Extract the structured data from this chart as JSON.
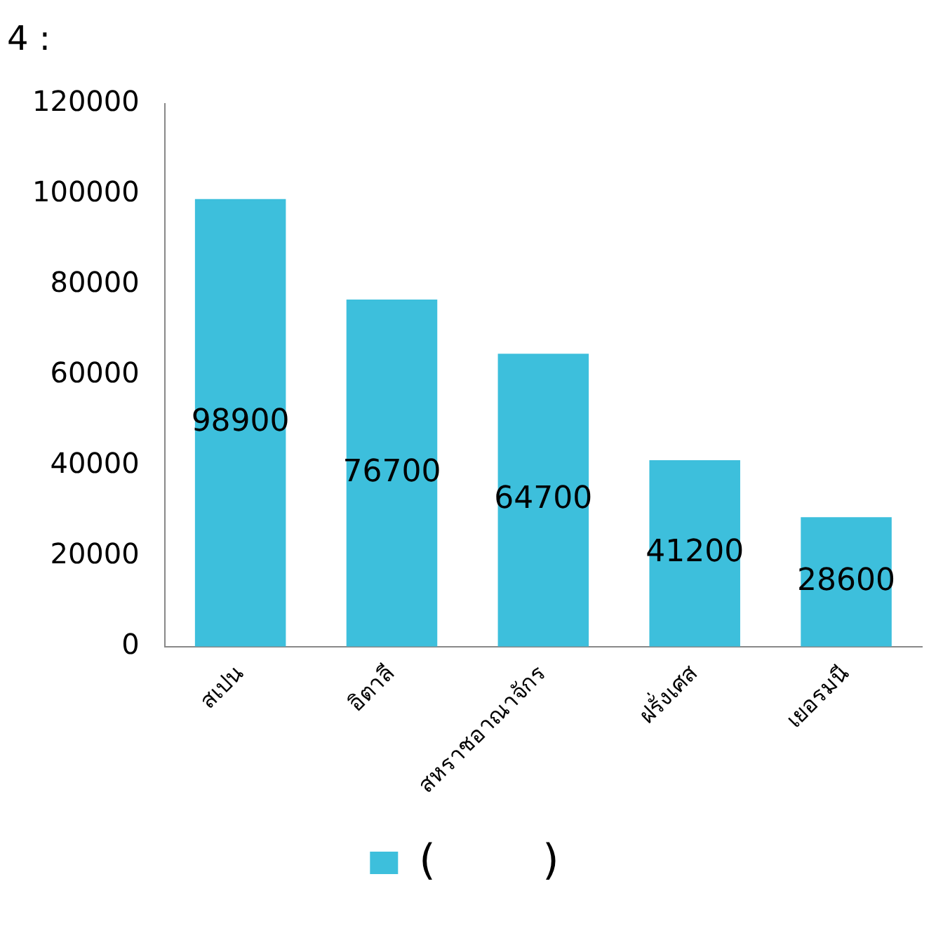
{
  "chart_data": {
    "type": "bar",
    "title": "4 :",
    "categories": [
      "สเปน",
      "อิตาลี",
      "สหราชอาณาจักร",
      "ฝรั่งเศส",
      "เยอรมนี"
    ],
    "series": [
      {
        "name": "(        )",
        "color": "#3dbfdc",
        "values": [
          98900,
          76700,
          64700,
          41200,
          28600
        ]
      }
    ],
    "ylim": [
      0,
      120000
    ],
    "yticks": [
      0,
      20000,
      40000,
      60000,
      80000,
      100000,
      120000
    ],
    "grid": false,
    "legend": "bottom",
    "data_labels": true
  }
}
